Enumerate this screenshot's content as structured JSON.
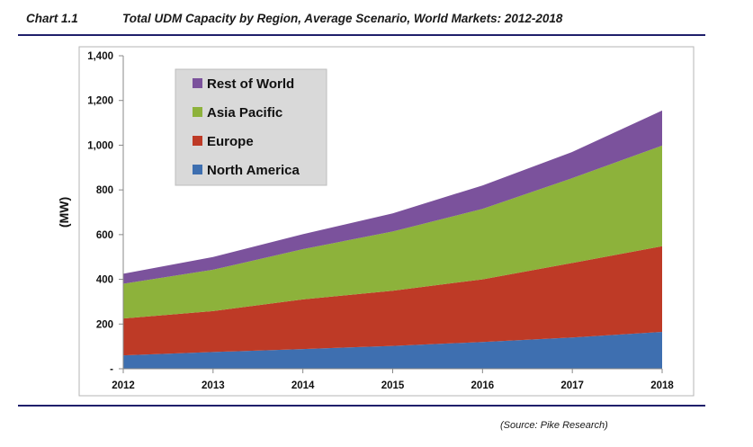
{
  "header": {
    "label": "Chart 1.1",
    "title": "Total UDM Capacity by Region, Average Scenario, World Markets: 2012-2018"
  },
  "source": "(Source: Pike Research)",
  "chart_data": {
    "type": "area",
    "stacked": true,
    "title": "Total UDM Capacity by Region, Average Scenario, World Markets: 2012-2018",
    "xlabel": "",
    "ylabel": "(MW)",
    "categories": [
      "2012",
      "2013",
      "2014",
      "2015",
      "2016",
      "2017",
      "2018"
    ],
    "ylim": [
      0,
      1400
    ],
    "yticks": [
      0,
      200,
      400,
      600,
      800,
      1000,
      1200,
      1400
    ],
    "ytick_labels": [
      "-",
      "200",
      "400",
      "600",
      "800",
      "1,000",
      "1,200",
      "1,400"
    ],
    "grid": false,
    "legend_position": "top-left",
    "series": [
      {
        "name": "North America",
        "color": "#3e6fb0",
        "values": [
          60,
          75,
          88,
          102,
          120,
          140,
          165
        ]
      },
      {
        "name": "Europe",
        "color": "#be3a26",
        "values": [
          165,
          183,
          222,
          247,
          280,
          333,
          383
        ]
      },
      {
        "name": "Asia Pacific",
        "color": "#8db23b",
        "values": [
          155,
          185,
          225,
          265,
          315,
          380,
          450
        ]
      },
      {
        "name": "Rest of World",
        "color": "#7b529c",
        "values": [
          45,
          57,
          67,
          81,
          105,
          117,
          157
        ]
      }
    ]
  }
}
